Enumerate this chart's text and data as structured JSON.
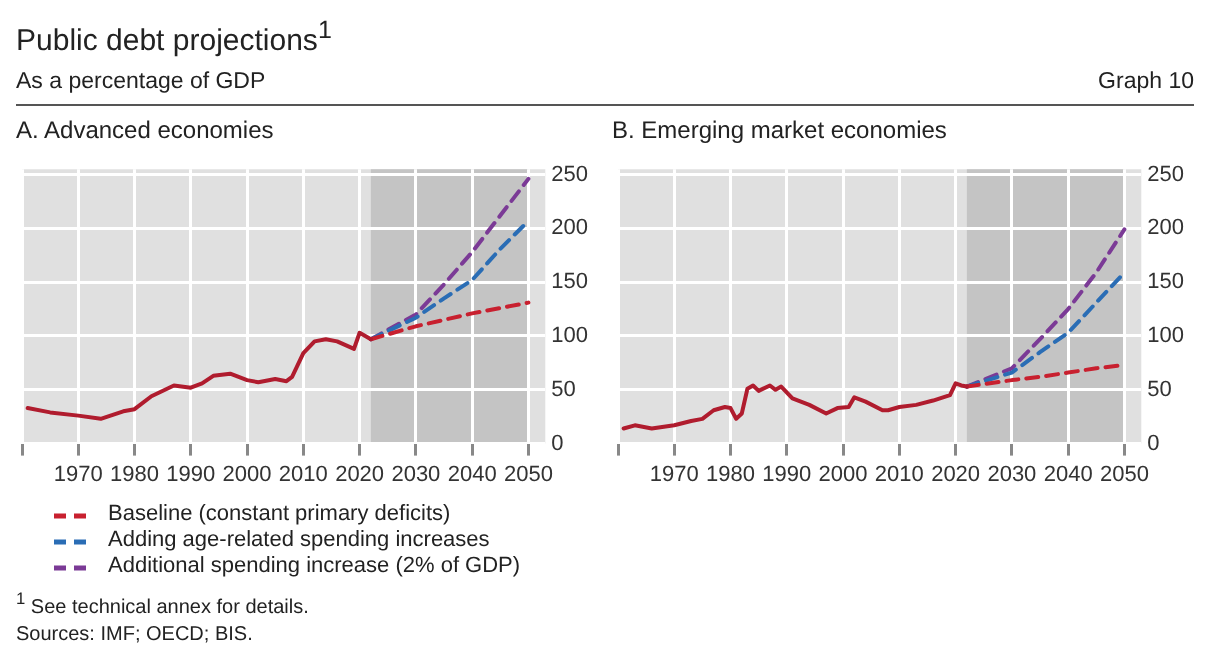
{
  "chart_data": [
    {
      "type": "line",
      "title": "A. Advanced economies",
      "annotations": [
        "Public debt projections$^{1}$",
        "As a percentage of GDP",
        "Graph 10",
        "$^{1}$ See technical annex for details.",
        "Sources: IMF; OECD; BIS."
      ],
      "xlim": [
        1960,
        2053
      ],
      "xticks": [
        {
          "value": 1960,
          "label": null
        },
        1970,
        1980,
        1990,
        2000,
        2010,
        2020,
        2030,
        2040,
        2050
      ],
      "ylim": [
        0,
        255
      ],
      "yticks": [
        0,
        50,
        100,
        150,
        200,
        250
      ],
      "grid": true,
      "legend": "bottom",
      "marker": "none",
      "bands": [
        {
          "axis": "x",
          "from": 2022,
          "to": 2050,
          "color": "#c4c4c4"
        }
      ],
      "series": [
        {
          "color": "#b01c2e",
          "line_style": "solid",
          "x": [
            1961,
            1965,
            1970,
            1974,
            1978,
            1980,
            1983,
            1987,
            1990,
            1992,
            1994,
            1997,
            2000,
            2002,
            2005,
            2007,
            2008,
            2010,
            2012,
            2014,
            2016,
            2019,
            2020,
            2021,
            2022
          ],
          "values": [
            33,
            29,
            26,
            23,
            30,
            32,
            44,
            54,
            52,
            56,
            63,
            65,
            59,
            57,
            60,
            58,
            62,
            84,
            95,
            97,
            95,
            88,
            103,
            100,
            97
          ]
        },
        {
          "name": "Baseline (constant primary deficits)",
          "color": "#c8202f",
          "line_style": "dashed",
          "x": [
            2022,
            2030,
            2035,
            2040,
            2045,
            2050
          ],
          "values": [
            97,
            109,
            115,
            121,
            126,
            131
          ]
        },
        {
          "name": "Adding age-related spending increases",
          "color": "#2a6db5",
          "line_style": "dashed",
          "x": [
            2022,
            2030,
            2035,
            2040,
            2045,
            2050
          ],
          "values": [
            97,
            117,
            135,
            152,
            181,
            207
          ]
        },
        {
          "name": "Additional spending increase (2% of GDP)",
          "color": "#7b3a96",
          "line_style": "dashed",
          "x": [
            2022,
            2030,
            2035,
            2040,
            2045,
            2050
          ],
          "values": [
            97,
            120,
            148,
            178,
            212,
            246
          ]
        }
      ]
    },
    {
      "type": "line",
      "title": "B. Emerging market economies",
      "xlim": [
        1960,
        2053
      ],
      "xticks": [
        {
          "value": 1960,
          "label": null
        },
        1970,
        1980,
        1990,
        2000,
        2010,
        2020,
        2030,
        2040,
        2050
      ],
      "ylim": [
        0,
        255
      ],
      "yticks": [
        0,
        50,
        100,
        150,
        200,
        250
      ],
      "grid": true,
      "marker": "none",
      "bands": [
        {
          "axis": "x",
          "from": 2022,
          "to": 2050,
          "color": "#c4c4c4"
        }
      ],
      "series": [
        {
          "color": "#b01c2e",
          "line_style": "solid",
          "x": [
            1961,
            1963,
            1966,
            1970,
            1973,
            1975,
            1977,
            1979,
            1980,
            1981,
            1982,
            1983,
            1984,
            1985,
            1987,
            1988,
            1989,
            1991,
            1994,
            1997,
            1999,
            2001,
            2002,
            2004,
            2007,
            2008,
            2010,
            2013,
            2016,
            2019,
            2020,
            2021,
            2022
          ],
          "values": [
            14,
            17,
            14,
            17,
            21,
            23,
            31,
            34,
            33,
            23,
            28,
            51,
            54,
            49,
            54,
            50,
            53,
            42,
            36,
            28,
            33,
            34,
            43,
            39,
            31,
            31,
            34,
            36,
            40,
            45,
            56,
            54,
            53
          ]
        },
        {
          "color": "#c8202f",
          "line_style": "dashed",
          "x": [
            2022,
            2030,
            2035,
            2040,
            2045,
            2050
          ],
          "values": [
            53,
            59,
            62,
            66,
            70,
            73
          ]
        },
        {
          "color": "#2a6db5",
          "line_style": "dashed",
          "x": [
            2022,
            2030,
            2035,
            2040,
            2045,
            2050
          ],
          "values": [
            53,
            66,
            85,
            103,
            131,
            159
          ]
        },
        {
          "color": "#7b3a96",
          "line_style": "dashed",
          "x": [
            2022,
            2030,
            2035,
            2040,
            2045,
            2050
          ],
          "values": [
            53,
            70,
            97,
            125,
            159,
            199
          ]
        }
      ]
    }
  ]
}
